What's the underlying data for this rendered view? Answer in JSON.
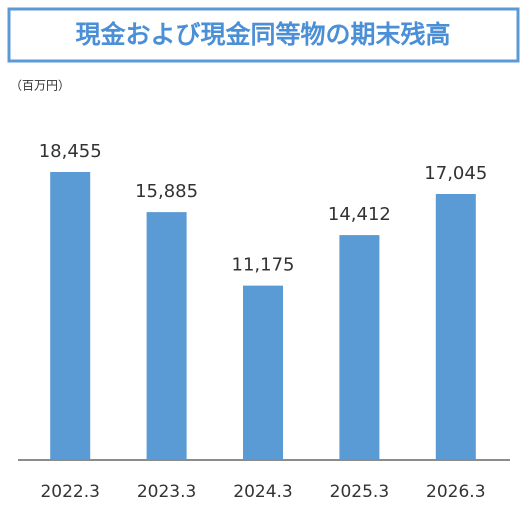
{
  "chart_data": {
    "type": "bar",
    "title": "現金および現金同等物の期末残高",
    "unit_label": "（百万円）",
    "categories": [
      "2022.3",
      "2023.3",
      "2024.3",
      "2025.3",
      "2026.3"
    ],
    "values": [
      18455,
      15885,
      11175,
      14412,
      17045
    ],
    "value_labels": [
      "18,455",
      "15,885",
      "11,175",
      "14,412",
      "17,045"
    ],
    "color": "#5b9bd5"
  }
}
